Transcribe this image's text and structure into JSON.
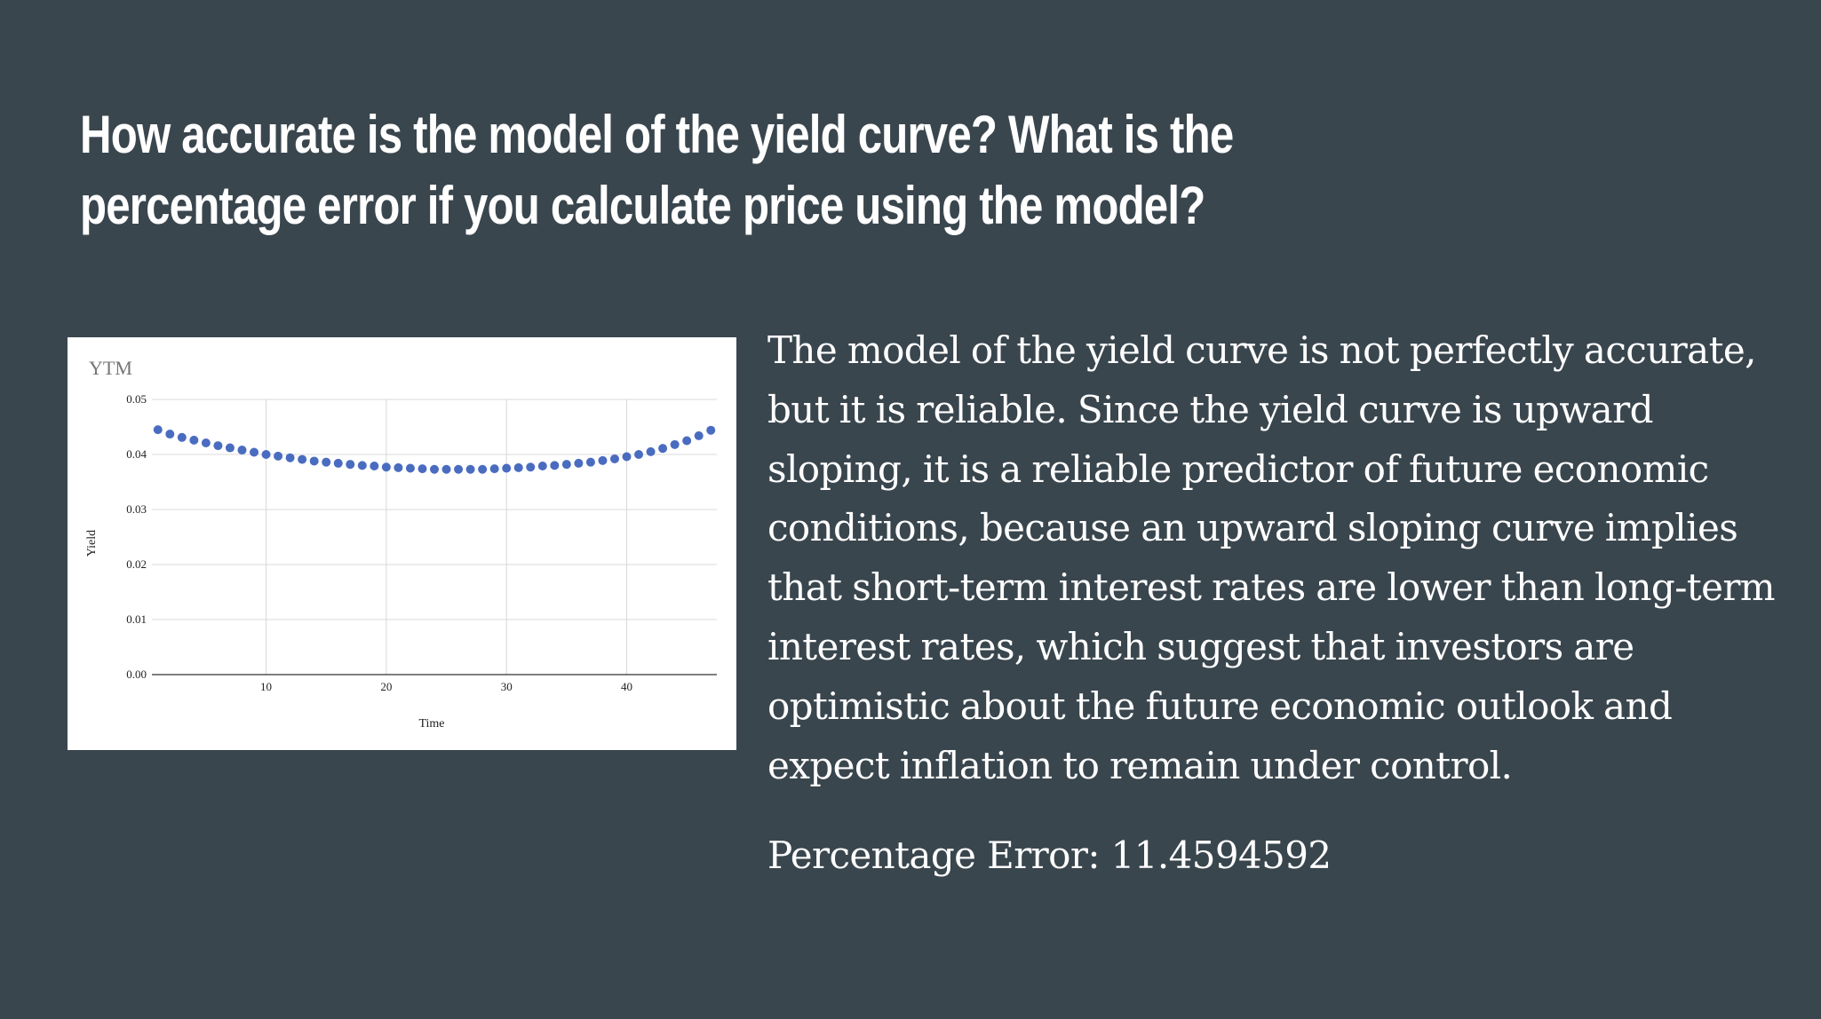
{
  "slide": {
    "title": "How accurate is the model of the yield curve? What is the percentage error if you calculate price using the model?",
    "body": "The model of the yield curve is not perfectly accurate, but it is reliable. Since the yield curve is upward sloping, it is a reliable predictor of future economic conditions, because an upward sloping curve implies that short-term interest rates are lower than long-term interest rates, which suggest that investors are optimistic about the future economic outlook and expect inflation to remain under control.",
    "percentage_error": "Percentage Error: 11.4594592"
  },
  "colors": {
    "background": "#3a464e",
    "text": "#ffffff",
    "series": "#4a6cc0",
    "grid": "#d9d9d9"
  },
  "chart_data": {
    "type": "scatter",
    "title": "YTM",
    "xlabel": "Time",
    "ylabel": "Yield",
    "xlim": [
      0.5,
      47.5
    ],
    "ylim": [
      0,
      0.05
    ],
    "x_ticks": [
      10,
      20,
      30,
      40
    ],
    "x_tick_labels": [
      "10",
      "20",
      "30",
      "40"
    ],
    "y_ticks": [
      0,
      0.01,
      0.02,
      0.03,
      0.04,
      0.05
    ],
    "y_tick_labels": [
      "0.00",
      "0.01",
      "0.02",
      "0.03",
      "0.04",
      "0.05"
    ],
    "grid": true,
    "legend": "none",
    "series": [
      {
        "x": [
          1,
          2,
          3,
          4,
          5,
          6,
          7,
          8,
          9,
          10,
          11,
          12,
          13,
          14,
          15,
          16,
          17,
          18,
          19,
          20,
          21,
          22,
          23,
          24,
          25,
          26,
          27,
          28,
          29,
          30,
          31,
          32,
          33,
          34,
          35,
          36,
          37,
          38,
          39,
          40,
          41,
          42,
          43,
          44,
          45,
          46,
          47
        ],
        "y": [
          0.0445,
          0.0437,
          0.0431,
          0.0426,
          0.0421,
          0.0416,
          0.0412,
          0.0408,
          0.0404,
          0.04,
          0.0397,
          0.0394,
          0.0391,
          0.0388,
          0.0386,
          0.0384,
          0.0382,
          0.038,
          0.0379,
          0.0377,
          0.0376,
          0.0375,
          0.0374,
          0.0373,
          0.0373,
          0.0373,
          0.0373,
          0.0373,
          0.0374,
          0.0375,
          0.0376,
          0.0377,
          0.0379,
          0.038,
          0.0382,
          0.0384,
          0.0386,
          0.0389,
          0.0392,
          0.0396,
          0.04,
          0.0405,
          0.0411,
          0.0418,
          0.0425,
          0.0434,
          0.0444
        ]
      }
    ]
  }
}
